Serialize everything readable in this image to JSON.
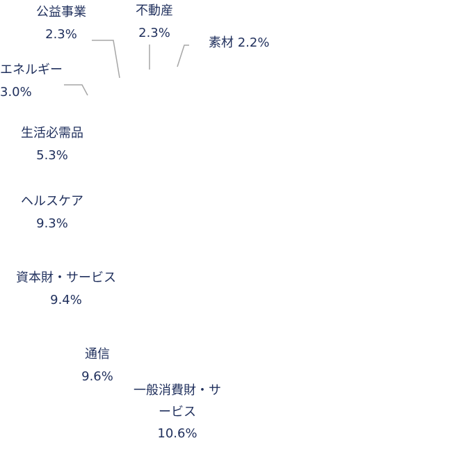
{
  "chart_data": {
    "type": "pie",
    "categories": [
      "素材",
      "不動産",
      "公益事業",
      "エネルギー",
      "生活必需品",
      "ヘルスケア",
      "資本財・サービス",
      "通信",
      "一般消費財・サービス"
    ],
    "values": [
      2.2,
      2.3,
      2.3,
      3.0,
      5.3,
      9.3,
      9.4,
      9.6,
      10.6
    ],
    "value_labels": [
      "2.2%",
      "2.3%",
      "2.3%",
      "3.0%",
      "5.3%",
      "9.3%",
      "9.4%",
      "9.6%",
      "10.6%"
    ]
  }
}
